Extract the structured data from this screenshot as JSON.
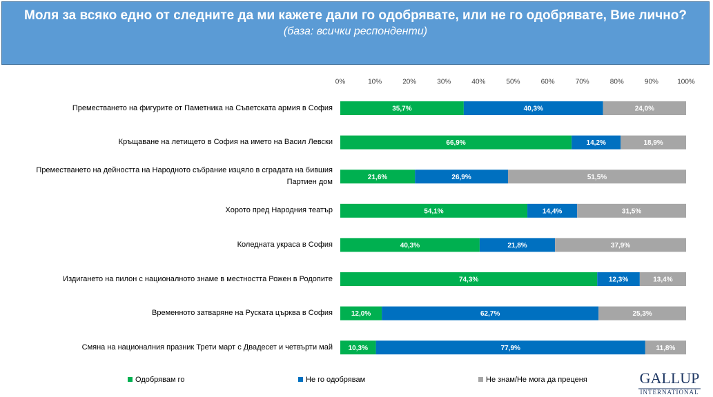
{
  "chart_data": {
    "type": "stacked-bar-horizontal",
    "title": "Моля за всяко едно от следните да ми кажете дали го одобрявате, или не го одобрявате, Вие лично?",
    "subtitle": "(база: всички респонденти)",
    "categories": [
      "Преместването на фигурите от Паметника на Съветската армия в София",
      "Кръщаване на летището в София на името на Васил Левски",
      "Преместването на дейността на Народното събрание изцяло в сградата на бившия Партиен дом",
      "Хорото пред Народния театър",
      "Коледната украса в София",
      "Издигането на пилон с националното знаме в местността Рожен в Родопите",
      "Временното затваряне на Руската църква в София",
      "Смяна на националния празник Трети март с Двадесет и четвърти май"
    ],
    "series": [
      {
        "name": "Одобрявам го",
        "color": "#00b050",
        "values": [
          35.7,
          66.9,
          21.6,
          54.1,
          40.3,
          74.3,
          12.0,
          10.3
        ],
        "value_labels": [
          "35,7%",
          "66,9%",
          "21,6%",
          "54,1%",
          "40,3%",
          "74,3%",
          "12,0%",
          "10,3%"
        ]
      },
      {
        "name": "Не го одобрявам",
        "color": "#0070c0",
        "values": [
          40.3,
          14.2,
          26.9,
          14.4,
          21.8,
          12.3,
          62.7,
          77.9
        ],
        "value_labels": [
          "40,3%",
          "14,2%",
          "26,9%",
          "14,4%",
          "21,8%",
          "12,3%",
          "62,7%",
          "77,9%"
        ]
      },
      {
        "name": "Не знам/Не мога да преценя",
        "color": "#a6a6a6",
        "values": [
          24.0,
          18.9,
          51.5,
          31.5,
          37.9,
          13.4,
          25.3,
          11.8
        ],
        "value_labels": [
          "24,0%",
          "18,9%",
          "51,5%",
          "31,5%",
          "37,9%",
          "13,4%",
          "25,3%",
          "11,8%"
        ]
      }
    ],
    "xlim": [
      0,
      100
    ],
    "xticks": [
      {
        "value": 0,
        "label": "0%"
      },
      {
        "value": 10,
        "label": "10%"
      },
      {
        "value": 20,
        "label": "20%"
      },
      {
        "value": 30,
        "label": "30%"
      },
      {
        "value": 40,
        "label": "40%"
      },
      {
        "value": 50,
        "label": "50%"
      },
      {
        "value": 60,
        "label": "60%"
      },
      {
        "value": 70,
        "label": "70%"
      },
      {
        "value": 80,
        "label": "80%"
      },
      {
        "value": 90,
        "label": "90%"
      },
      {
        "value": 100,
        "label": "100%"
      }
    ],
    "grid": false,
    "legend": "bottom"
  },
  "logo": {
    "name": "GALLUP",
    "sub": "INTERNATIONAL"
  }
}
